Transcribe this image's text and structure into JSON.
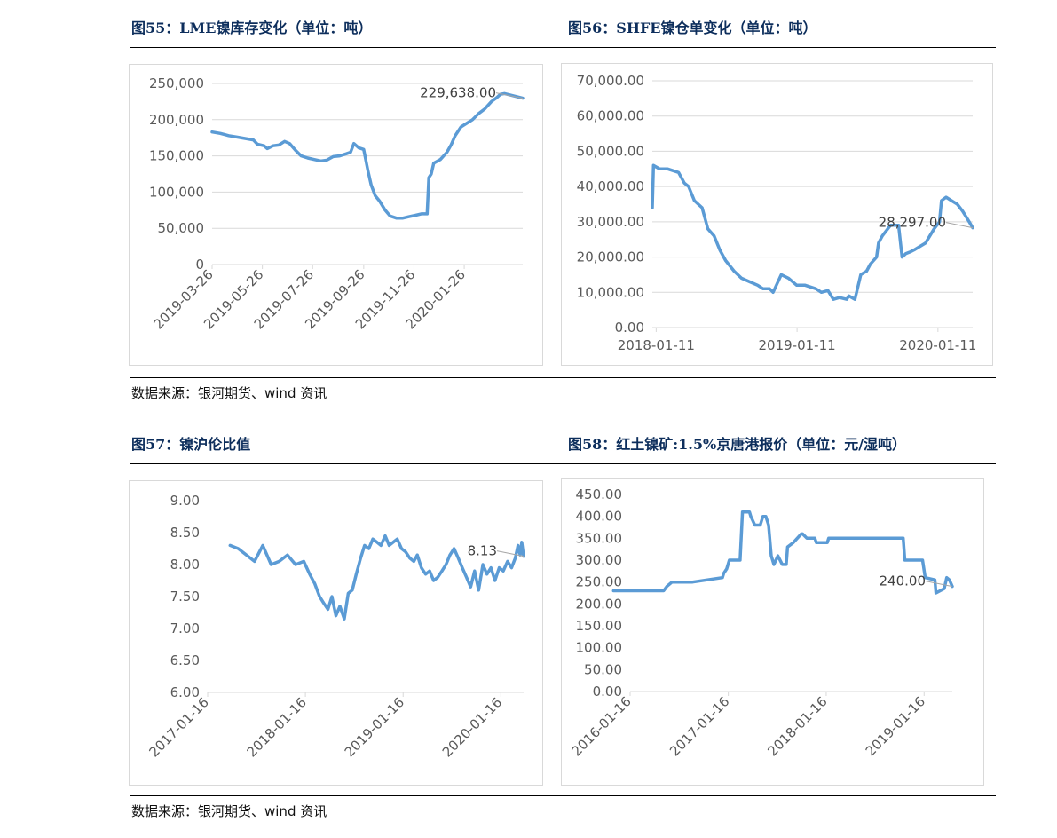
{
  "titles": {
    "c55": "图55：LME镍库存变化（单位：吨）",
    "c56": "图56：SHFE镍仓单变化（单位：吨）",
    "c57": "图57：镍沪伦比值",
    "c58": "图58：红土镍矿:1.5%京唐港报价（单位：元/湿吨）"
  },
  "sources": {
    "top": "数据来源：银河期货、wind 资讯",
    "bottom": "数据来源：银河期货、wind 资讯"
  },
  "colors": {
    "series": "#5b9bd5",
    "leader": "#a6a6a6",
    "grid": "#d9d9d9",
    "tick": "#595959"
  },
  "chart_data": [
    {
      "id": "c55",
      "type": "line",
      "title": "LME镍库存变化（单位：吨）",
      "unit": "吨",
      "ylim": [
        0,
        250000
      ],
      "yticks": [
        0,
        50000,
        100000,
        150000,
        200000,
        250000
      ],
      "ytick_labels": [
        "0",
        "50,000",
        "100,000",
        "150,000",
        "200,000",
        "250,000"
      ],
      "xlim": [
        "2019-03-26",
        "2020-04-06"
      ],
      "xticks": [
        "2019-03-26",
        "2019-05-26",
        "2019-07-26",
        "2019-09-26",
        "2019-11-26",
        "2020-01-26"
      ],
      "xtick_rotate": true,
      "grid": true,
      "annotation": {
        "x": "2020-04-06",
        "y": 229638,
        "label": "229,638.00"
      },
      "x": [
        "2019-03-26",
        "2019-04-05",
        "2019-04-15",
        "2019-04-25",
        "2019-05-05",
        "2019-05-15",
        "2019-05-20",
        "2019-05-28",
        "2019-06-01",
        "2019-06-08",
        "2019-06-15",
        "2019-06-22",
        "2019-06-28",
        "2019-07-05",
        "2019-07-12",
        "2019-07-20",
        "2019-07-28",
        "2019-08-05",
        "2019-08-12",
        "2019-08-20",
        "2019-08-28",
        "2019-09-05",
        "2019-09-10",
        "2019-09-14",
        "2019-09-20",
        "2019-09-26",
        "2019-10-01",
        "2019-10-05",
        "2019-10-10",
        "2019-10-15",
        "2019-10-22",
        "2019-10-28",
        "2019-11-05",
        "2019-11-12",
        "2019-11-20",
        "2019-11-28",
        "2019-12-05",
        "2019-12-12",
        "2019-12-14",
        "2019-12-17",
        "2019-12-20",
        "2019-12-28",
        "2020-01-05",
        "2020-01-10",
        "2020-01-15",
        "2020-01-22",
        "2020-01-29",
        "2020-02-05",
        "2020-02-12",
        "2020-02-20",
        "2020-02-28",
        "2020-03-05",
        "2020-03-10",
        "2020-03-15",
        "2020-03-22",
        "2020-03-29",
        "2020-04-06"
      ],
      "series": [
        {
          "values": [
            183000,
            181000,
            178000,
            176000,
            174000,
            172000,
            166000,
            164000,
            160000,
            164000,
            165000,
            170000,
            167000,
            158000,
            150000,
            147000,
            145000,
            143000,
            144000,
            149000,
            150000,
            153000,
            155000,
            167000,
            161000,
            159000,
            130000,
            110000,
            95000,
            88000,
            75000,
            67000,
            64000,
            64000,
            66000,
            68000,
            70000,
            70000,
            120000,
            125000,
            140000,
            145000,
            155000,
            165000,
            178000,
            190000,
            195000,
            200000,
            208000,
            215000,
            225000,
            230000,
            235000,
            236000,
            234000,
            232000,
            229638
          ]
        }
      ]
    },
    {
      "id": "c56",
      "type": "line",
      "title": "SHFE镍仓单变化（单位：吨）",
      "unit": "吨",
      "ylim": [
        0,
        70000
      ],
      "yticks": [
        0,
        10000,
        20000,
        30000,
        40000,
        50000,
        60000,
        70000
      ],
      "ytick_labels": [
        "0.00",
        "10,000.00",
        "20,000.00",
        "30,000.00",
        "40,000.00",
        "50,000.00",
        "60,000.00",
        "70,000.00"
      ],
      "xlim": [
        "2018-01-01",
        "2020-04-10"
      ],
      "xticks": [
        "2018-01-11",
        "2019-01-11",
        "2020-01-11"
      ],
      "xtick_rotate": false,
      "grid": true,
      "annotation": {
        "x": "2020-04-10",
        "y": 28297,
        "label": "28,297.00"
      },
      "x": [
        "2018-01-01",
        "2018-01-04",
        "2018-01-20",
        "2018-02-10",
        "2018-03-10",
        "2018-03-25",
        "2018-04-05",
        "2018-04-20",
        "2018-05-10",
        "2018-05-25",
        "2018-06-10",
        "2018-06-25",
        "2018-07-10",
        "2018-08-01",
        "2018-08-20",
        "2018-09-10",
        "2018-10-01",
        "2018-10-15",
        "2018-11-01",
        "2018-11-10",
        "2018-12-01",
        "2018-12-20",
        "2019-01-10",
        "2019-02-01",
        "2019-03-01",
        "2019-03-15",
        "2019-04-01",
        "2019-04-15",
        "2019-05-01",
        "2019-05-20",
        "2019-05-25",
        "2019-06-10",
        "2019-06-25",
        "2019-07-10",
        "2019-07-20",
        "2019-08-05",
        "2019-08-10",
        "2019-08-20",
        "2019-09-10",
        "2019-10-01",
        "2019-10-10",
        "2019-10-20",
        "2019-11-01",
        "2019-11-10",
        "2019-12-10",
        "2020-01-01",
        "2020-01-15",
        "2020-01-20",
        "2020-02-01",
        "2020-02-15",
        "2020-03-01",
        "2020-03-15",
        "2020-04-01",
        "2020-04-10"
      ],
      "series": [
        {
          "values": [
            34000,
            46000,
            45000,
            45000,
            44000,
            41000,
            40000,
            36000,
            34000,
            28000,
            26000,
            22000,
            19000,
            16000,
            14000,
            13000,
            12000,
            11000,
            11000,
            10000,
            15000,
            14000,
            12000,
            12000,
            11000,
            10000,
            10500,
            8000,
            8500,
            8000,
            9000,
            8000,
            15000,
            16000,
            18000,
            20000,
            24000,
            26000,
            29000,
            29000,
            20000,
            21000,
            21500,
            22000,
            24000,
            28000,
            30000,
            36000,
            37000,
            36000,
            35000,
            33000,
            30000,
            28297
          ]
        }
      ]
    },
    {
      "id": "c57",
      "type": "line",
      "title": "镍沪伦比值",
      "ylim": [
        6.0,
        9.0
      ],
      "yticks": [
        6.0,
        6.5,
        7.0,
        7.5,
        8.0,
        8.5,
        9.0
      ],
      "ytick_labels": [
        "6.00",
        "6.50",
        "7.00",
        "7.50",
        "8.00",
        "8.50",
        "9.00"
      ],
      "xlim": [
        "2017-01-16",
        "2020-04-10"
      ],
      "xticks": [
        "2017-01-16",
        "2018-01-16",
        "2019-01-16",
        "2020-01-16"
      ],
      "xtick_rotate": true,
      "grid": false,
      "annotation": {
        "x": "2020-04-10",
        "y": 8.13,
        "label": "8.13"
      },
      "x": [
        "2017-04-10",
        "2017-05-10",
        "2017-06-10",
        "2017-07-10",
        "2017-08-10",
        "2017-09-10",
        "2017-10-10",
        "2017-11-10",
        "2017-12-10",
        "2018-01-10",
        "2018-02-01",
        "2018-02-20",
        "2018-03-10",
        "2018-03-25",
        "2018-04-10",
        "2018-04-25",
        "2018-05-10",
        "2018-05-25",
        "2018-06-10",
        "2018-06-25",
        "2018-07-10",
        "2018-07-25",
        "2018-08-10",
        "2018-08-25",
        "2018-09-10",
        "2018-09-25",
        "2018-10-10",
        "2018-10-25",
        "2018-11-10",
        "2018-11-25",
        "2018-12-10",
        "2018-12-25",
        "2019-01-10",
        "2019-01-25",
        "2019-02-10",
        "2019-02-25",
        "2019-03-10",
        "2019-03-25",
        "2019-04-10",
        "2019-04-25",
        "2019-05-10",
        "2019-05-25",
        "2019-06-10",
        "2019-06-25",
        "2019-07-10",
        "2019-07-25",
        "2019-08-10",
        "2019-08-25",
        "2019-09-10",
        "2019-09-25",
        "2019-10-10",
        "2019-10-25",
        "2019-11-10",
        "2019-11-25",
        "2019-12-10",
        "2019-12-25",
        "2020-01-10",
        "2020-01-25",
        "2020-02-10",
        "2020-02-25",
        "2020-03-10",
        "2020-03-20",
        "2020-03-28",
        "2020-04-03",
        "2020-04-10"
      ],
      "series": [
        {
          "values": [
            8.3,
            8.25,
            8.15,
            8.05,
            8.3,
            8.0,
            8.05,
            8.15,
            8.0,
            8.05,
            7.85,
            7.7,
            7.5,
            7.4,
            7.3,
            7.5,
            7.2,
            7.35,
            7.15,
            7.55,
            7.6,
            7.85,
            8.1,
            8.3,
            8.25,
            8.4,
            8.35,
            8.3,
            8.45,
            8.3,
            8.35,
            8.4,
            8.25,
            8.2,
            8.1,
            8.05,
            8.15,
            7.95,
            7.85,
            7.9,
            7.75,
            7.8,
            7.9,
            8.0,
            8.15,
            8.25,
            8.1,
            7.95,
            7.8,
            7.65,
            7.9,
            7.6,
            8.0,
            7.85,
            7.95,
            7.75,
            7.95,
            7.9,
            8.05,
            7.95,
            8.1,
            8.3,
            8.15,
            8.35,
            8.13
          ]
        }
      ]
    },
    {
      "id": "c58",
      "type": "line",
      "title": "红土镍矿:1.5%京唐港报价（单位：元/湿吨）",
      "unit": "元/湿吨",
      "ylim": [
        0,
        450
      ],
      "yticks": [
        0,
        50,
        100,
        150,
        200,
        250,
        300,
        350,
        400,
        450
      ],
      "ytick_labels": [
        "0.00",
        "50.00",
        "100.00",
        "150.00",
        "200.00",
        "250.00",
        "300.00",
        "350.00",
        "400.00",
        "450.00"
      ],
      "xlim": [
        "2016-01-16",
        "2019-05-01"
      ],
      "xticks": [
        "2016-01-16",
        "2017-01-16",
        "2018-01-16",
        "2019-01-16"
      ],
      "xtick_rotate": true,
      "grid": false,
      "annotation": {
        "x": "2019-05-01",
        "y": 240,
        "label": "240.00"
      },
      "x": [
        "2015-11-15",
        "2016-03-01",
        "2016-03-10",
        "2016-05-20",
        "2016-06-01",
        "2016-06-20",
        "2016-07-01",
        "2016-08-30",
        "2016-09-05",
        "2016-12-25",
        "2016-12-30",
        "2017-01-10",
        "2017-01-20",
        "2017-02-01",
        "2017-02-20",
        "2017-03-01",
        "2017-03-10",
        "2017-04-05",
        "2017-04-10",
        "2017-04-25",
        "2017-05-05",
        "2017-05-15",
        "2017-05-25",
        "2017-06-05",
        "2017-06-15",
        "2017-06-25",
        "2017-07-05",
        "2017-07-20",
        "2017-08-05",
        "2017-08-20",
        "2017-08-25",
        "2017-09-15",
        "2017-10-15",
        "2017-10-20",
        "2017-11-05",
        "2017-12-05",
        "2017-12-10",
        "2018-01-20",
        "2018-01-25",
        "2018-10-30",
        "2018-11-05",
        "2018-11-20",
        "2018-11-25",
        "2018-12-05",
        "2018-12-10",
        "2019-01-10",
        "2019-01-20",
        "2019-02-25",
        "2019-03-01",
        "2019-04-01",
        "2019-04-10",
        "2019-04-20",
        "2019-05-01"
      ],
      "series": [
        {
          "values": [
            230,
            230,
            230,
            230,
            240,
            250,
            250,
            250,
            250,
            260,
            270,
            280,
            300,
            300,
            300,
            300,
            410,
            410,
            400,
            380,
            380,
            380,
            400,
            400,
            380,
            310,
            290,
            310,
            290,
            290,
            330,
            340,
            360,
            360,
            350,
            350,
            340,
            340,
            350,
            350,
            300,
            300,
            300,
            300,
            300,
            300,
            260,
            255,
            225,
            235,
            260,
            255,
            240
          ]
        }
      ]
    }
  ]
}
